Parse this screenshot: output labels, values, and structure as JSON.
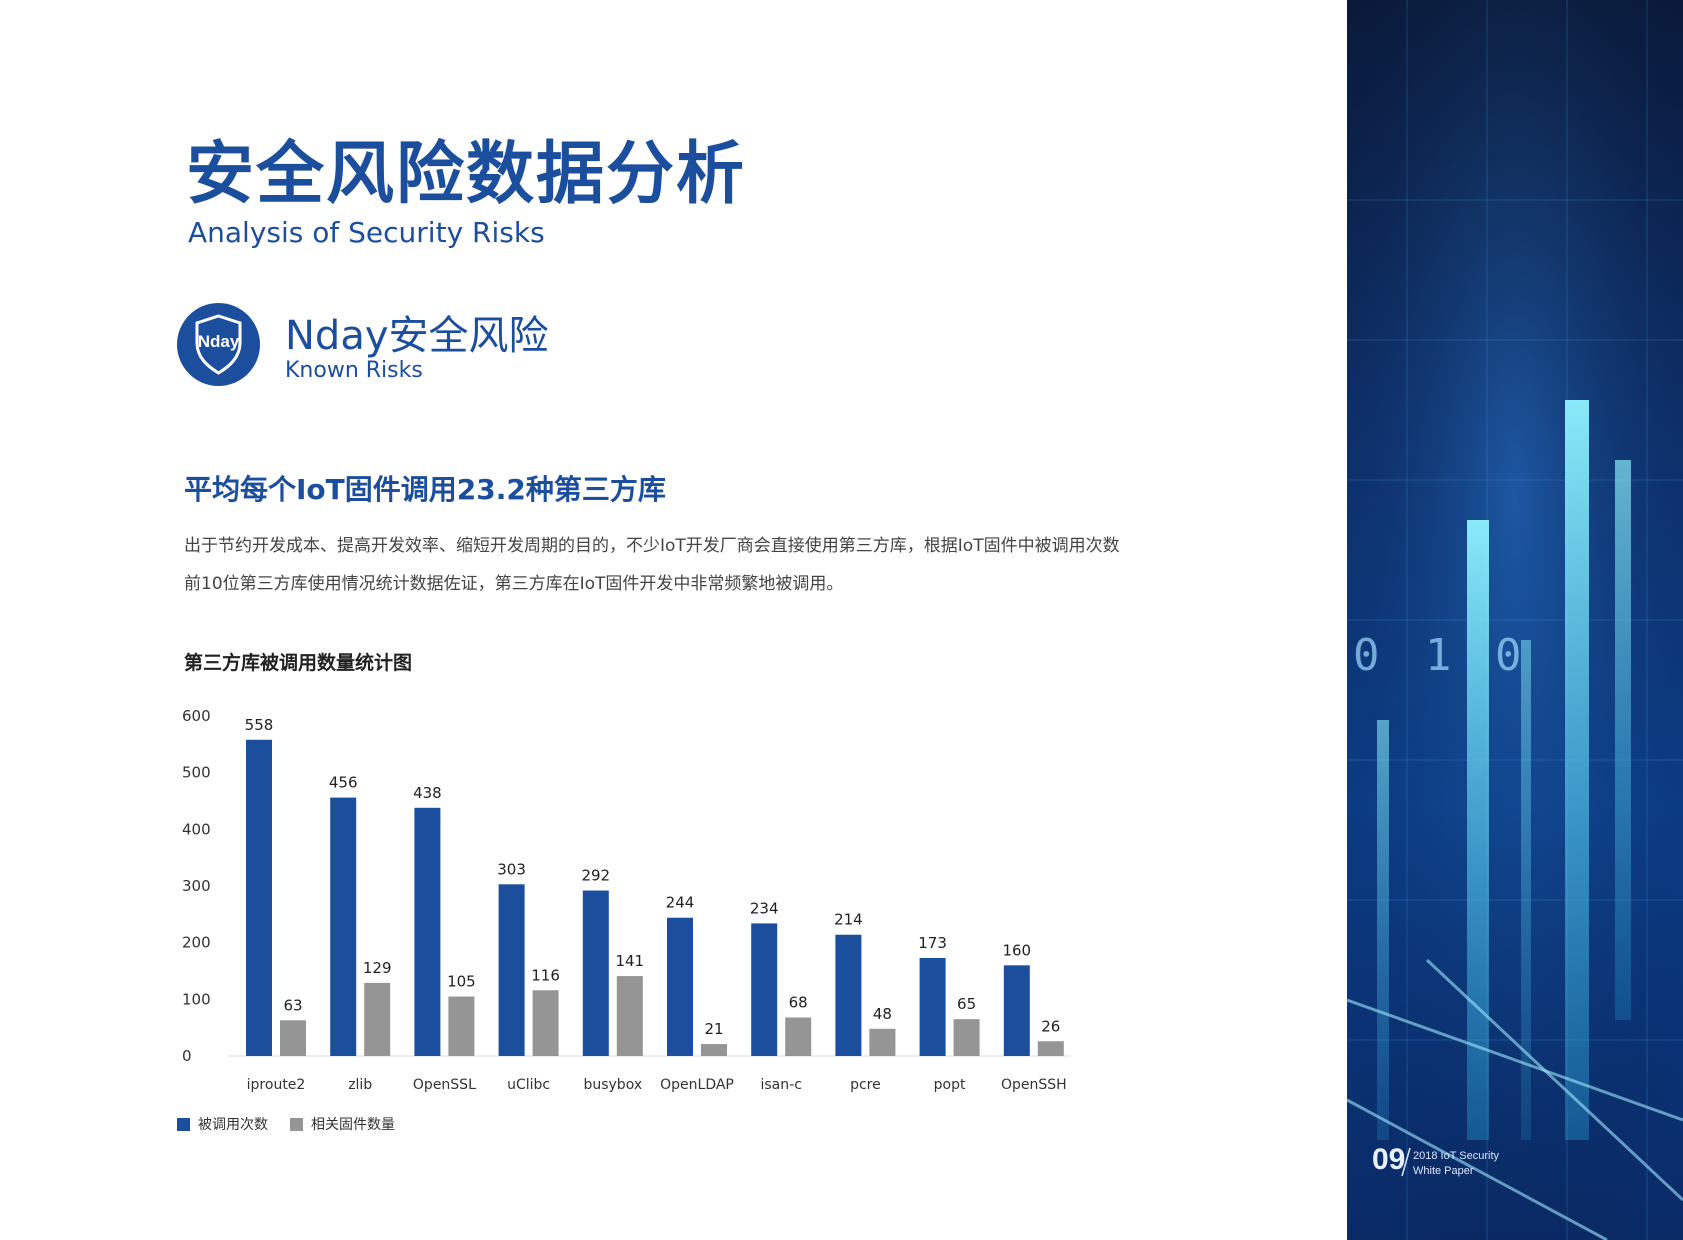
{
  "header": {
    "title": "安全风险数据分析",
    "subtitle": "Analysis of Security Risks"
  },
  "badge": {
    "text": "Nday",
    "icon": "shield-icon"
  },
  "section": {
    "title": "Nday安全风险",
    "subtitle": "Known Risks"
  },
  "headline": "平均每个IoT固件调用23.2种第三方库",
  "paragraph": "出于节约开发成本、提高开发效率、缩短开发周期的目的，不少IoT开发厂商会直接使用第三方库，根据IoT固件中被调用次数前10位第三方库使用情况统计数据佐证，第三方库在IoT固件开发中非常频繁地被调用。",
  "chart_title": "第三方库被调用数量统计图",
  "chart_data": {
    "type": "bar",
    "title": "第三方库被调用数量统计图",
    "categories": [
      "iproute2",
      "zlib",
      "OpenSSL",
      "uClibc",
      "busybox",
      "OpenLDAP",
      "isan-c",
      "pcre",
      "popt",
      "OpenSSH"
    ],
    "series": [
      {
        "name": "被调用次数",
        "color": "#1b4f9e",
        "values": [
          558,
          456,
          438,
          303,
          292,
          244,
          234,
          214,
          173,
          160
        ]
      },
      {
        "name": "相关固件数量",
        "color": "#959595",
        "values": [
          63,
          129,
          105,
          116,
          141,
          21,
          68,
          48,
          65,
          26
        ]
      }
    ],
    "y_ticks": [
      0,
      100,
      200,
      300,
      400,
      500,
      600
    ],
    "ylim": [
      0,
      600
    ],
    "xlabel": "",
    "ylabel": "",
    "grid": false,
    "legend_position": "bottom-left"
  },
  "footer": {
    "page_number": "09",
    "line1": "2018 IoT Security",
    "line2": "White Paper"
  }
}
